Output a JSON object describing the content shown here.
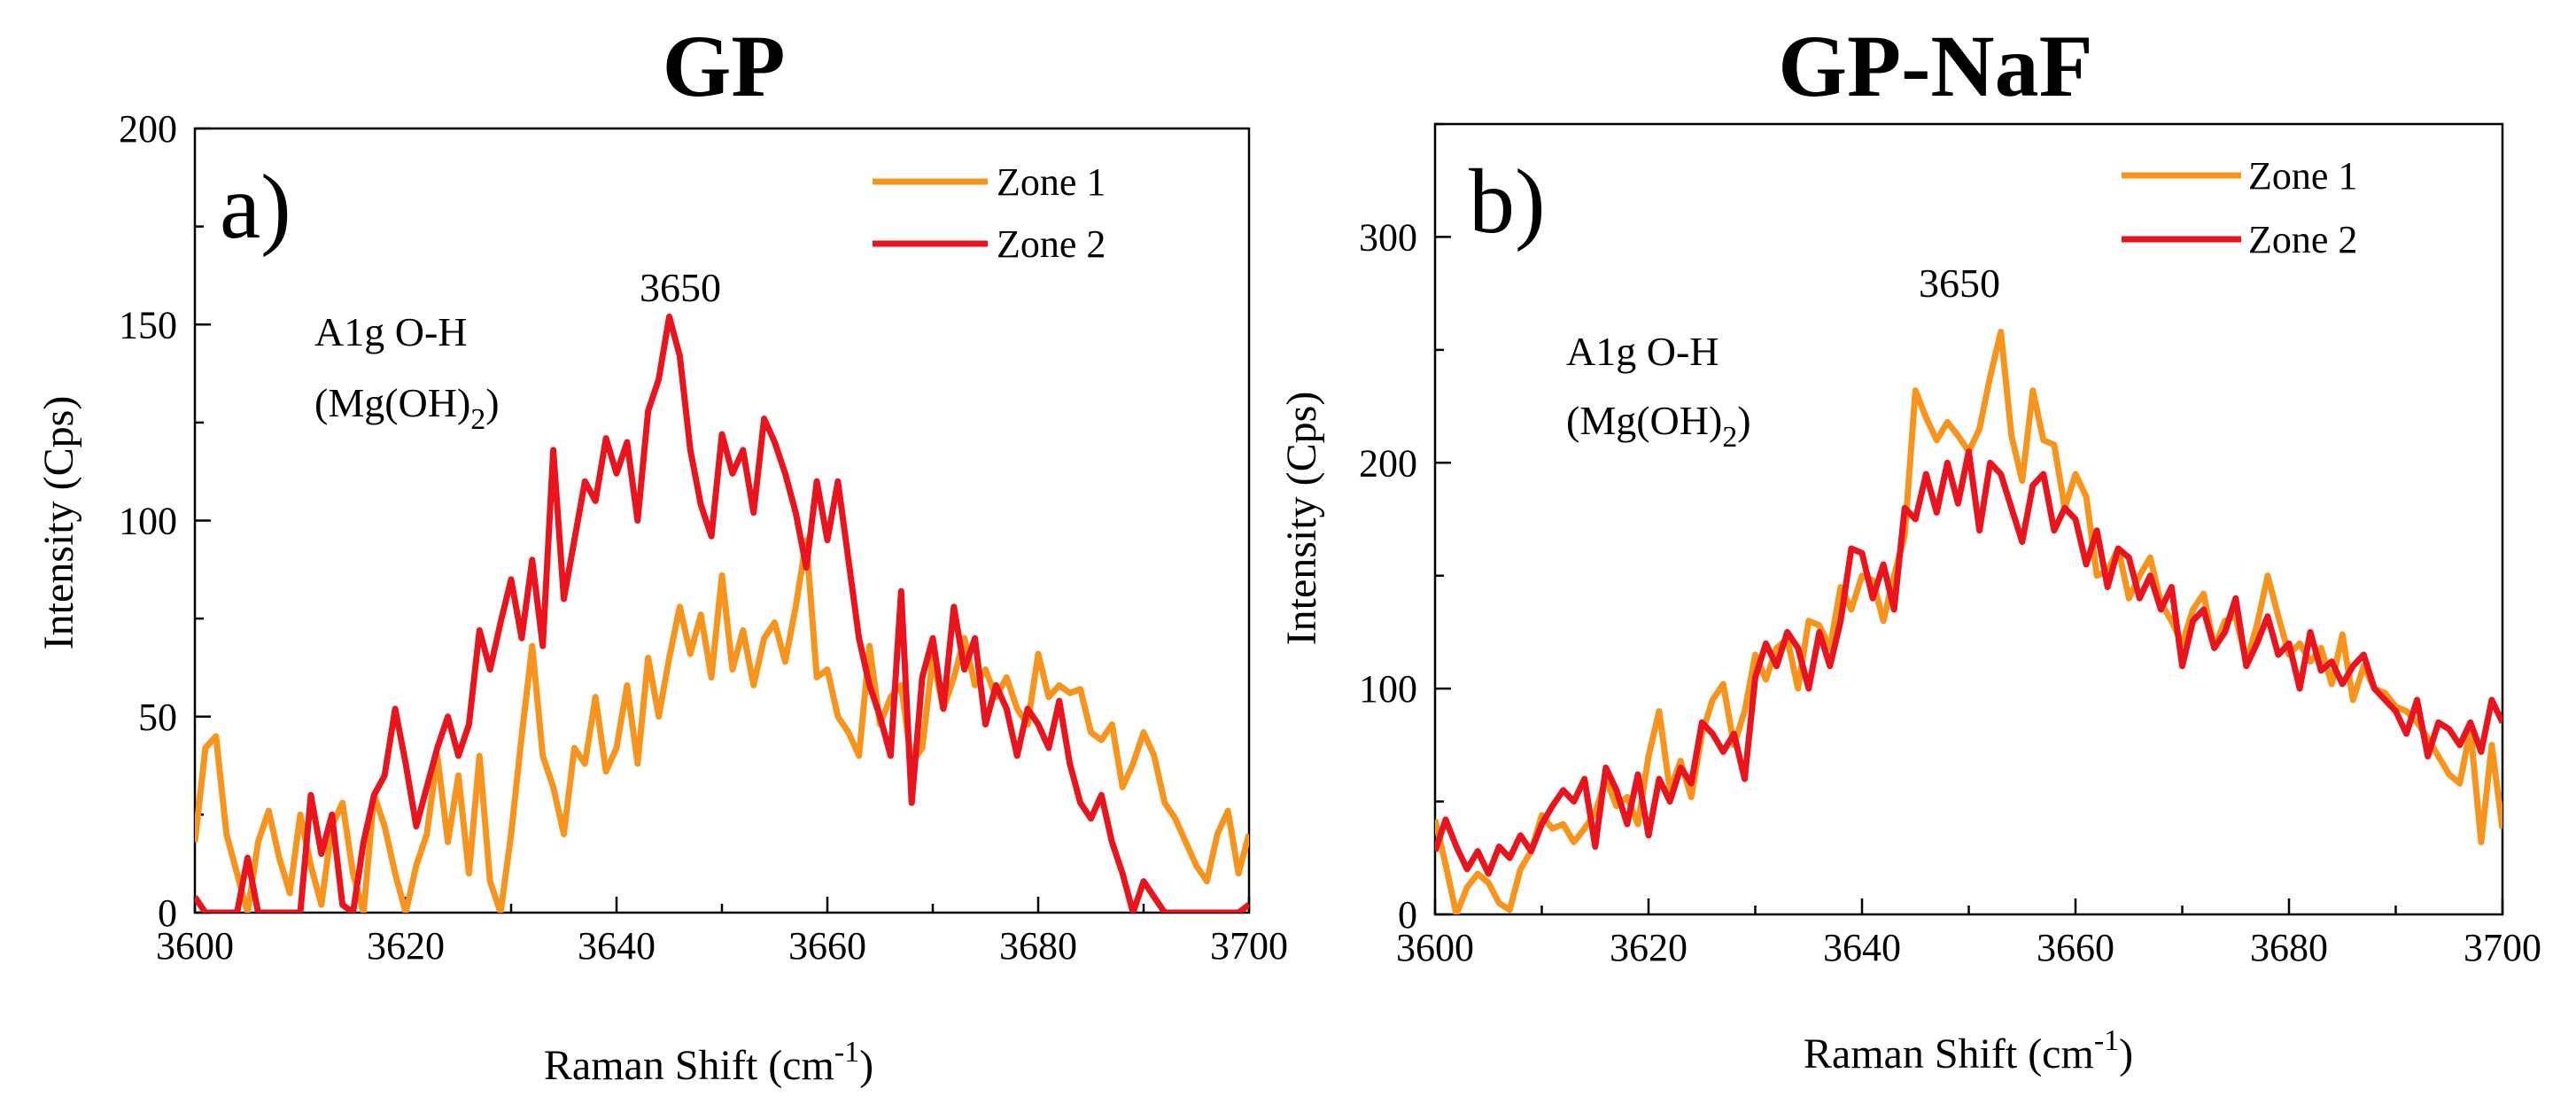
{
  "figure": {
    "panels": [
      "a",
      "b"
    ]
  },
  "chart_data": [
    {
      "id": "a",
      "type": "line",
      "title": "GP",
      "panel_label": "a)",
      "xlabel": "Raman Shift (cm",
      "xlabel_sup": "-1",
      "xlabel_end": ")",
      "ylabel": "Intensity (Cps)",
      "xlim": [
        3600,
        3700
      ],
      "ylim": [
        0,
        200
      ],
      "xticks": [
        3600,
        3620,
        3640,
        3660,
        3680,
        3700
      ],
      "yticks": [
        0,
        50,
        100,
        150,
        200
      ],
      "legend_position": "top-right",
      "annotations": {
        "peak": "3650",
        "mode": "A1g O-H",
        "compound": "(Mg(OH)",
        "compound_sub": "2",
        "compound_end": ")"
      },
      "series": [
        {
          "name": "Zone 1",
          "color": "#f7941d",
          "x": [
            3600,
            3601,
            3602,
            3603,
            3604,
            3605,
            3606,
            3607,
            3608,
            3609,
            3610,
            3611,
            3612,
            3613,
            3614,
            3615,
            3616,
            3617,
            3618,
            3619,
            3620,
            3621,
            3622,
            3623,
            3624,
            3625,
            3626,
            3627,
            3628,
            3629,
            3630,
            3631,
            3632,
            3633,
            3634,
            3635,
            3636,
            3637,
            3638,
            3639,
            3640,
            3641,
            3642,
            3643,
            3644,
            3645,
            3646,
            3647,
            3648,
            3649,
            3650,
            3651,
            3652,
            3653,
            3654,
            3655,
            3656,
            3657,
            3658,
            3659,
            3660,
            3661,
            3662,
            3663,
            3664,
            3665,
            3666,
            3667,
            3668,
            3669,
            3670,
            3671,
            3672,
            3673,
            3674,
            3675,
            3676,
            3677,
            3678,
            3679,
            3680,
            3681,
            3682,
            3683,
            3684,
            3685,
            3686,
            3687,
            3688,
            3689,
            3690,
            3691,
            3692,
            3693,
            3694,
            3695,
            3696,
            3697,
            3698,
            3699,
            3700
          ],
          "y": [
            18,
            42,
            45,
            20,
            10,
            0,
            18,
            26,
            14,
            5,
            25,
            12,
            2,
            22,
            28,
            10,
            0,
            30,
            22,
            10,
            0,
            12,
            20,
            40,
            18,
            35,
            10,
            40,
            8,
            0,
            20,
            45,
            68,
            40,
            32,
            20,
            42,
            38,
            55,
            36,
            42,
            58,
            38,
            65,
            50,
            65,
            78,
            66,
            76,
            60,
            86,
            62,
            72,
            58,
            70,
            74,
            64,
            78,
            95,
            60,
            62,
            50,
            46,
            40,
            68,
            48,
            55,
            58,
            38,
            42,
            65,
            52,
            60,
            70,
            58,
            62,
            55,
            60,
            52,
            48,
            66,
            55,
            58,
            56,
            57,
            46,
            44,
            48,
            32,
            38,
            46,
            40,
            28,
            24,
            18,
            12,
            8,
            20,
            26,
            10,
            20
          ]
        },
        {
          "name": "Zone 2",
          "color": "#e8141e",
          "x": [
            3600,
            3601,
            3602,
            3603,
            3604,
            3605,
            3606,
            3607,
            3608,
            3609,
            3610,
            3611,
            3612,
            3613,
            3614,
            3615,
            3616,
            3617,
            3618,
            3619,
            3620,
            3621,
            3622,
            3623,
            3624,
            3625,
            3626,
            3627,
            3628,
            3629,
            3630,
            3631,
            3632,
            3633,
            3634,
            3635,
            3636,
            3637,
            3638,
            3639,
            3640,
            3641,
            3642,
            3643,
            3644,
            3645,
            3646,
            3647,
            3648,
            3649,
            3650,
            3651,
            3652,
            3653,
            3654,
            3655,
            3656,
            3657,
            3658,
            3659,
            3660,
            3661,
            3662,
            3663,
            3664,
            3665,
            3666,
            3667,
            3668,
            3669,
            3670,
            3671,
            3672,
            3673,
            3674,
            3675,
            3676,
            3677,
            3678,
            3679,
            3680,
            3681,
            3682,
            3683,
            3684,
            3685,
            3686,
            3687,
            3688,
            3689,
            3690,
            3691,
            3692,
            3693,
            3694,
            3695,
            3696,
            3697,
            3698,
            3699,
            3700
          ],
          "y": [
            4,
            0,
            0,
            0,
            0,
            14,
            0,
            0,
            0,
            0,
            0,
            30,
            15,
            25,
            2,
            0,
            18,
            30,
            35,
            52,
            38,
            22,
            32,
            42,
            50,
            40,
            48,
            72,
            62,
            74,
            85,
            70,
            90,
            68,
            118,
            80,
            95,
            110,
            105,
            121,
            112,
            120,
            100,
            128,
            136,
            152,
            142,
            118,
            104,
            96,
            122,
            112,
            118,
            102,
            126,
            120,
            112,
            102,
            88,
            110,
            95,
            110,
            90,
            70,
            58,
            50,
            40,
            82,
            28,
            60,
            70,
            52,
            78,
            62,
            70,
            48,
            58,
            52,
            40,
            52,
            48,
            42,
            54,
            38,
            28,
            24,
            30,
            18,
            10,
            0,
            8,
            4,
            0,
            0,
            0,
            0,
            0,
            0,
            0,
            0,
            2
          ]
        }
      ]
    },
    {
      "id": "b",
      "type": "line",
      "title": "GP-NaF",
      "panel_label": "b)",
      "xlabel": "Raman Shift (cm",
      "xlabel_sup": "-1",
      "xlabel_end": ")",
      "ylabel": "Intensity (Cps)",
      "xlim": [
        3600,
        3700
      ],
      "ylim": [
        0,
        350
      ],
      "xticks": [
        3600,
        3620,
        3640,
        3660,
        3680,
        3700
      ],
      "yticks": [
        0,
        100,
        200,
        300
      ],
      "legend_position": "top-right",
      "annotations": {
        "peak": "3650",
        "mode": "A1g O-H",
        "compound": "(Mg(OH)",
        "compound_sub": "2",
        "compound_end": ")"
      },
      "series": [
        {
          "name": "Zone 1",
          "color": "#f7941d",
          "x": [
            3600,
            3601,
            3602,
            3603,
            3604,
            3605,
            3606,
            3607,
            3608,
            3609,
            3610,
            3611,
            3612,
            3613,
            3614,
            3615,
            3616,
            3617,
            3618,
            3619,
            3620,
            3621,
            3622,
            3623,
            3624,
            3625,
            3626,
            3627,
            3628,
            3629,
            3630,
            3631,
            3632,
            3633,
            3634,
            3635,
            3636,
            3637,
            3638,
            3639,
            3640,
            3641,
            3642,
            3643,
            3644,
            3645,
            3646,
            3647,
            3648,
            3649,
            3650,
            3651,
            3652,
            3653,
            3654,
            3655,
            3656,
            3657,
            3658,
            3659,
            3660,
            3661,
            3662,
            3663,
            3664,
            3665,
            3666,
            3667,
            3668,
            3669,
            3670,
            3671,
            3672,
            3673,
            3674,
            3675,
            3676,
            3677,
            3678,
            3679,
            3680,
            3681,
            3682,
            3683,
            3684,
            3685,
            3686,
            3687,
            3688,
            3689,
            3690,
            3691,
            3692,
            3693,
            3694,
            3695,
            3696,
            3697,
            3698,
            3699,
            3700
          ],
          "y": [
            42,
            22,
            0,
            12,
            18,
            14,
            5,
            2,
            20,
            28,
            44,
            38,
            40,
            32,
            38,
            45,
            60,
            48,
            52,
            40,
            70,
            90,
            55,
            68,
            52,
            80,
            95,
            102,
            75,
            90,
            115,
            104,
            118,
            122,
            100,
            130,
            128,
            118,
            145,
            135,
            150,
            148,
            130,
            150,
            168,
            232,
            220,
            210,
            218,
            212,
            205,
            215,
            238,
            258,
            212,
            192,
            232,
            210,
            208,
            180,
            195,
            185,
            150,
            152,
            162,
            140,
            150,
            158,
            138,
            130,
            120,
            135,
            142,
            118,
            130,
            132,
            112,
            128,
            150,
            132,
            115,
            120,
            112,
            118,
            102,
            124,
            95,
            110,
            100,
            98,
            92,
            90,
            85,
            78,
            70,
            62,
            58,
            82,
            32,
            75,
            38
          ]
        },
        {
          "name": "Zone 2",
          "color": "#e8141e",
          "x": [
            3600,
            3601,
            3602,
            3603,
            3604,
            3605,
            3606,
            3607,
            3608,
            3609,
            3610,
            3611,
            3612,
            3613,
            3614,
            3615,
            3616,
            3617,
            3618,
            3619,
            3620,
            3621,
            3622,
            3623,
            3624,
            3625,
            3626,
            3627,
            3628,
            3629,
            3630,
            3631,
            3632,
            3633,
            3634,
            3635,
            3636,
            3637,
            3638,
            3639,
            3640,
            3641,
            3642,
            3643,
            3644,
            3645,
            3646,
            3647,
            3648,
            3649,
            3650,
            3651,
            3652,
            3653,
            3654,
            3655,
            3656,
            3657,
            3658,
            3659,
            3660,
            3661,
            3662,
            3663,
            3664,
            3665,
            3666,
            3667,
            3668,
            3669,
            3670,
            3671,
            3672,
            3673,
            3674,
            3675,
            3676,
            3677,
            3678,
            3679,
            3680,
            3681,
            3682,
            3683,
            3684,
            3685,
            3686,
            3687,
            3688,
            3689,
            3690,
            3691,
            3692,
            3693,
            3694,
            3695,
            3696,
            3697,
            3698,
            3699,
            3700
          ],
          "y": [
            28,
            42,
            30,
            20,
            28,
            18,
            30,
            25,
            35,
            28,
            40,
            48,
            55,
            50,
            60,
            30,
            65,
            55,
            40,
            62,
            35,
            60,
            50,
            65,
            58,
            85,
            80,
            72,
            80,
            60,
            105,
            120,
            110,
            125,
            118,
            100,
            125,
            110,
            130,
            162,
            160,
            140,
            155,
            135,
            180,
            175,
            195,
            178,
            200,
            182,
            205,
            170,
            200,
            195,
            180,
            165,
            190,
            195,
            170,
            180,
            175,
            155,
            170,
            145,
            162,
            158,
            140,
            150,
            135,
            145,
            110,
            130,
            135,
            118,
            125,
            140,
            110,
            120,
            132,
            115,
            120,
            100,
            125,
            108,
            112,
            102,
            110,
            115,
            100,
            95,
            90,
            80,
            95,
            70,
            85,
            82,
            75,
            85,
            72,
            95,
            85
          ]
        }
      ]
    }
  ]
}
